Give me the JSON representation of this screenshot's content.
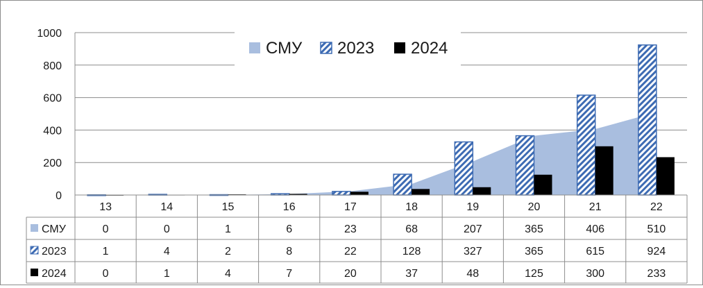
{
  "chart_data": {
    "type": "bar",
    "title": "",
    "xlabel": "",
    "ylabel": "",
    "ylim": [
      0,
      1000
    ],
    "yticks": [
      0,
      200,
      400,
      600,
      800,
      1000
    ],
    "grid": true,
    "legend_position": "top",
    "categories": [
      "13",
      "14",
      "15",
      "16",
      "17",
      "18",
      "19",
      "20",
      "21",
      "22"
    ],
    "series": [
      {
        "name": "СМУ",
        "kind": "area",
        "color": "#a9bedf",
        "values": [
          0,
          0,
          1,
          6,
          23,
          68,
          207,
          365,
          406,
          510
        ]
      },
      {
        "name": "2023",
        "kind": "bar",
        "pattern": "hatched",
        "color": "#3d6bb3",
        "values": [
          1,
          4,
          2,
          8,
          22,
          128,
          327,
          365,
          615,
          924
        ]
      },
      {
        "name": "2024",
        "kind": "bar",
        "color": "#000000",
        "values": [
          0,
          1,
          4,
          7,
          20,
          37,
          48,
          125,
          300,
          233
        ]
      }
    ],
    "data_table": true
  }
}
